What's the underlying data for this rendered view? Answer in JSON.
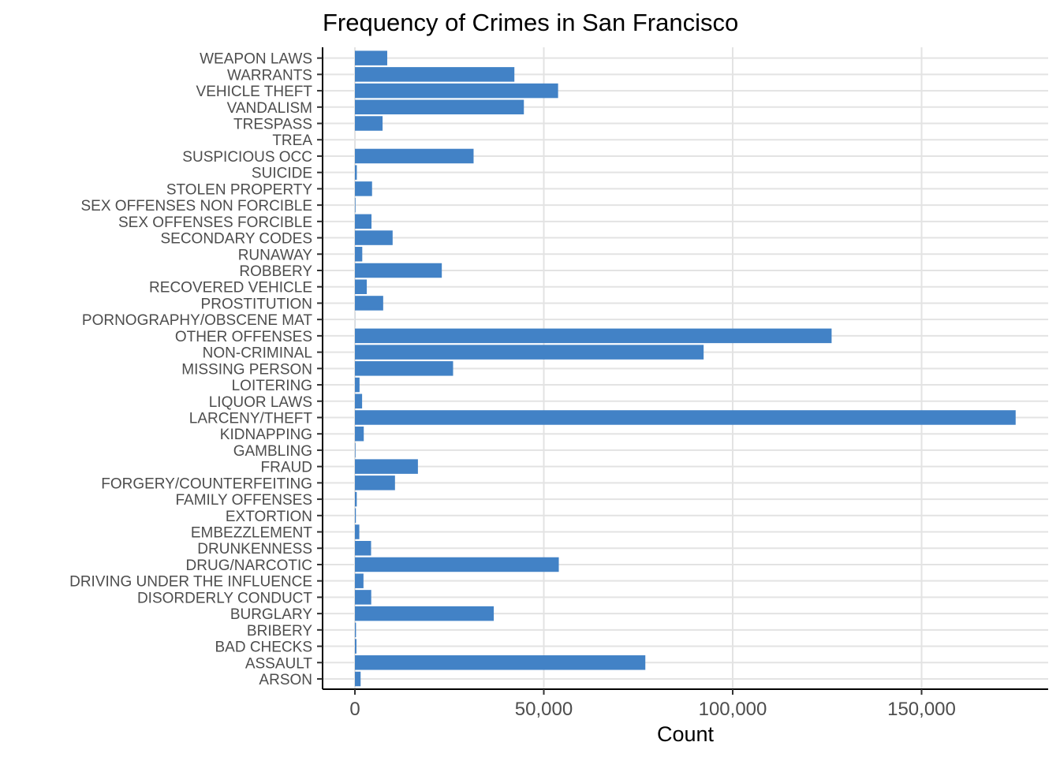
{
  "chart_data": {
    "type": "bar",
    "orientation": "horizontal",
    "title": "Frequency of Crimes in San Francisco",
    "xlabel": "Count",
    "ylabel": "",
    "xlim": [
      -15000,
      182000
    ],
    "x_ticks": [
      0,
      50000,
      100000,
      150000
    ],
    "x_tick_labels": [
      "0",
      "50,000",
      "100,000",
      "150,000"
    ],
    "grid": true,
    "bar_color": "#4282c6",
    "categories": [
      "ARSON",
      "ASSAULT",
      "BAD CHECKS",
      "BRIBERY",
      "BURGLARY",
      "DISORDERLY CONDUCT",
      "DRIVING UNDER THE INFLUENCE",
      "DRUG/NARCOTIC",
      "DRUNKENNESS",
      "EMBEZZLEMENT",
      "EXTORTION",
      "FAMILY OFFENSES",
      "FORGERY/COUNTERFEITING",
      "FRAUD",
      "GAMBLING",
      "KIDNAPPING",
      "LARCENY/THEFT",
      "LIQUOR LAWS",
      "LOITERING",
      "MISSING PERSON",
      "NON-CRIMINAL",
      "OTHER OFFENSES",
      "PORNOGRAPHY/OBSCENE MAT",
      "PROSTITUTION",
      "RECOVERED VEHICLE",
      "ROBBERY",
      "RUNAWAY",
      "SECONDARY CODES",
      "SEX OFFENSES FORCIBLE",
      "SEX OFFENSES NON FORCIBLE",
      "STOLEN PROPERTY",
      "SUICIDE",
      "SUSPICIOUS OCC",
      "TREA",
      "TRESPASS",
      "VANDALISM",
      "VEHICLE THEFT",
      "WARRANTS",
      "WEAPON LAWS"
    ],
    "values": [
      1513,
      76876,
      406,
      289,
      36755,
      4320,
      2268,
      53971,
      4280,
      1166,
      256,
      491,
      10609,
      16679,
      146,
      2341,
      174900,
      1903,
      1225,
      25989,
      92304,
      126182,
      22,
      7484,
      3138,
      23000,
      1946,
      9985,
      4388,
      148,
      4540,
      508,
      31414,
      6,
      7326,
      44725,
      53781,
      42214,
      8555
    ]
  }
}
